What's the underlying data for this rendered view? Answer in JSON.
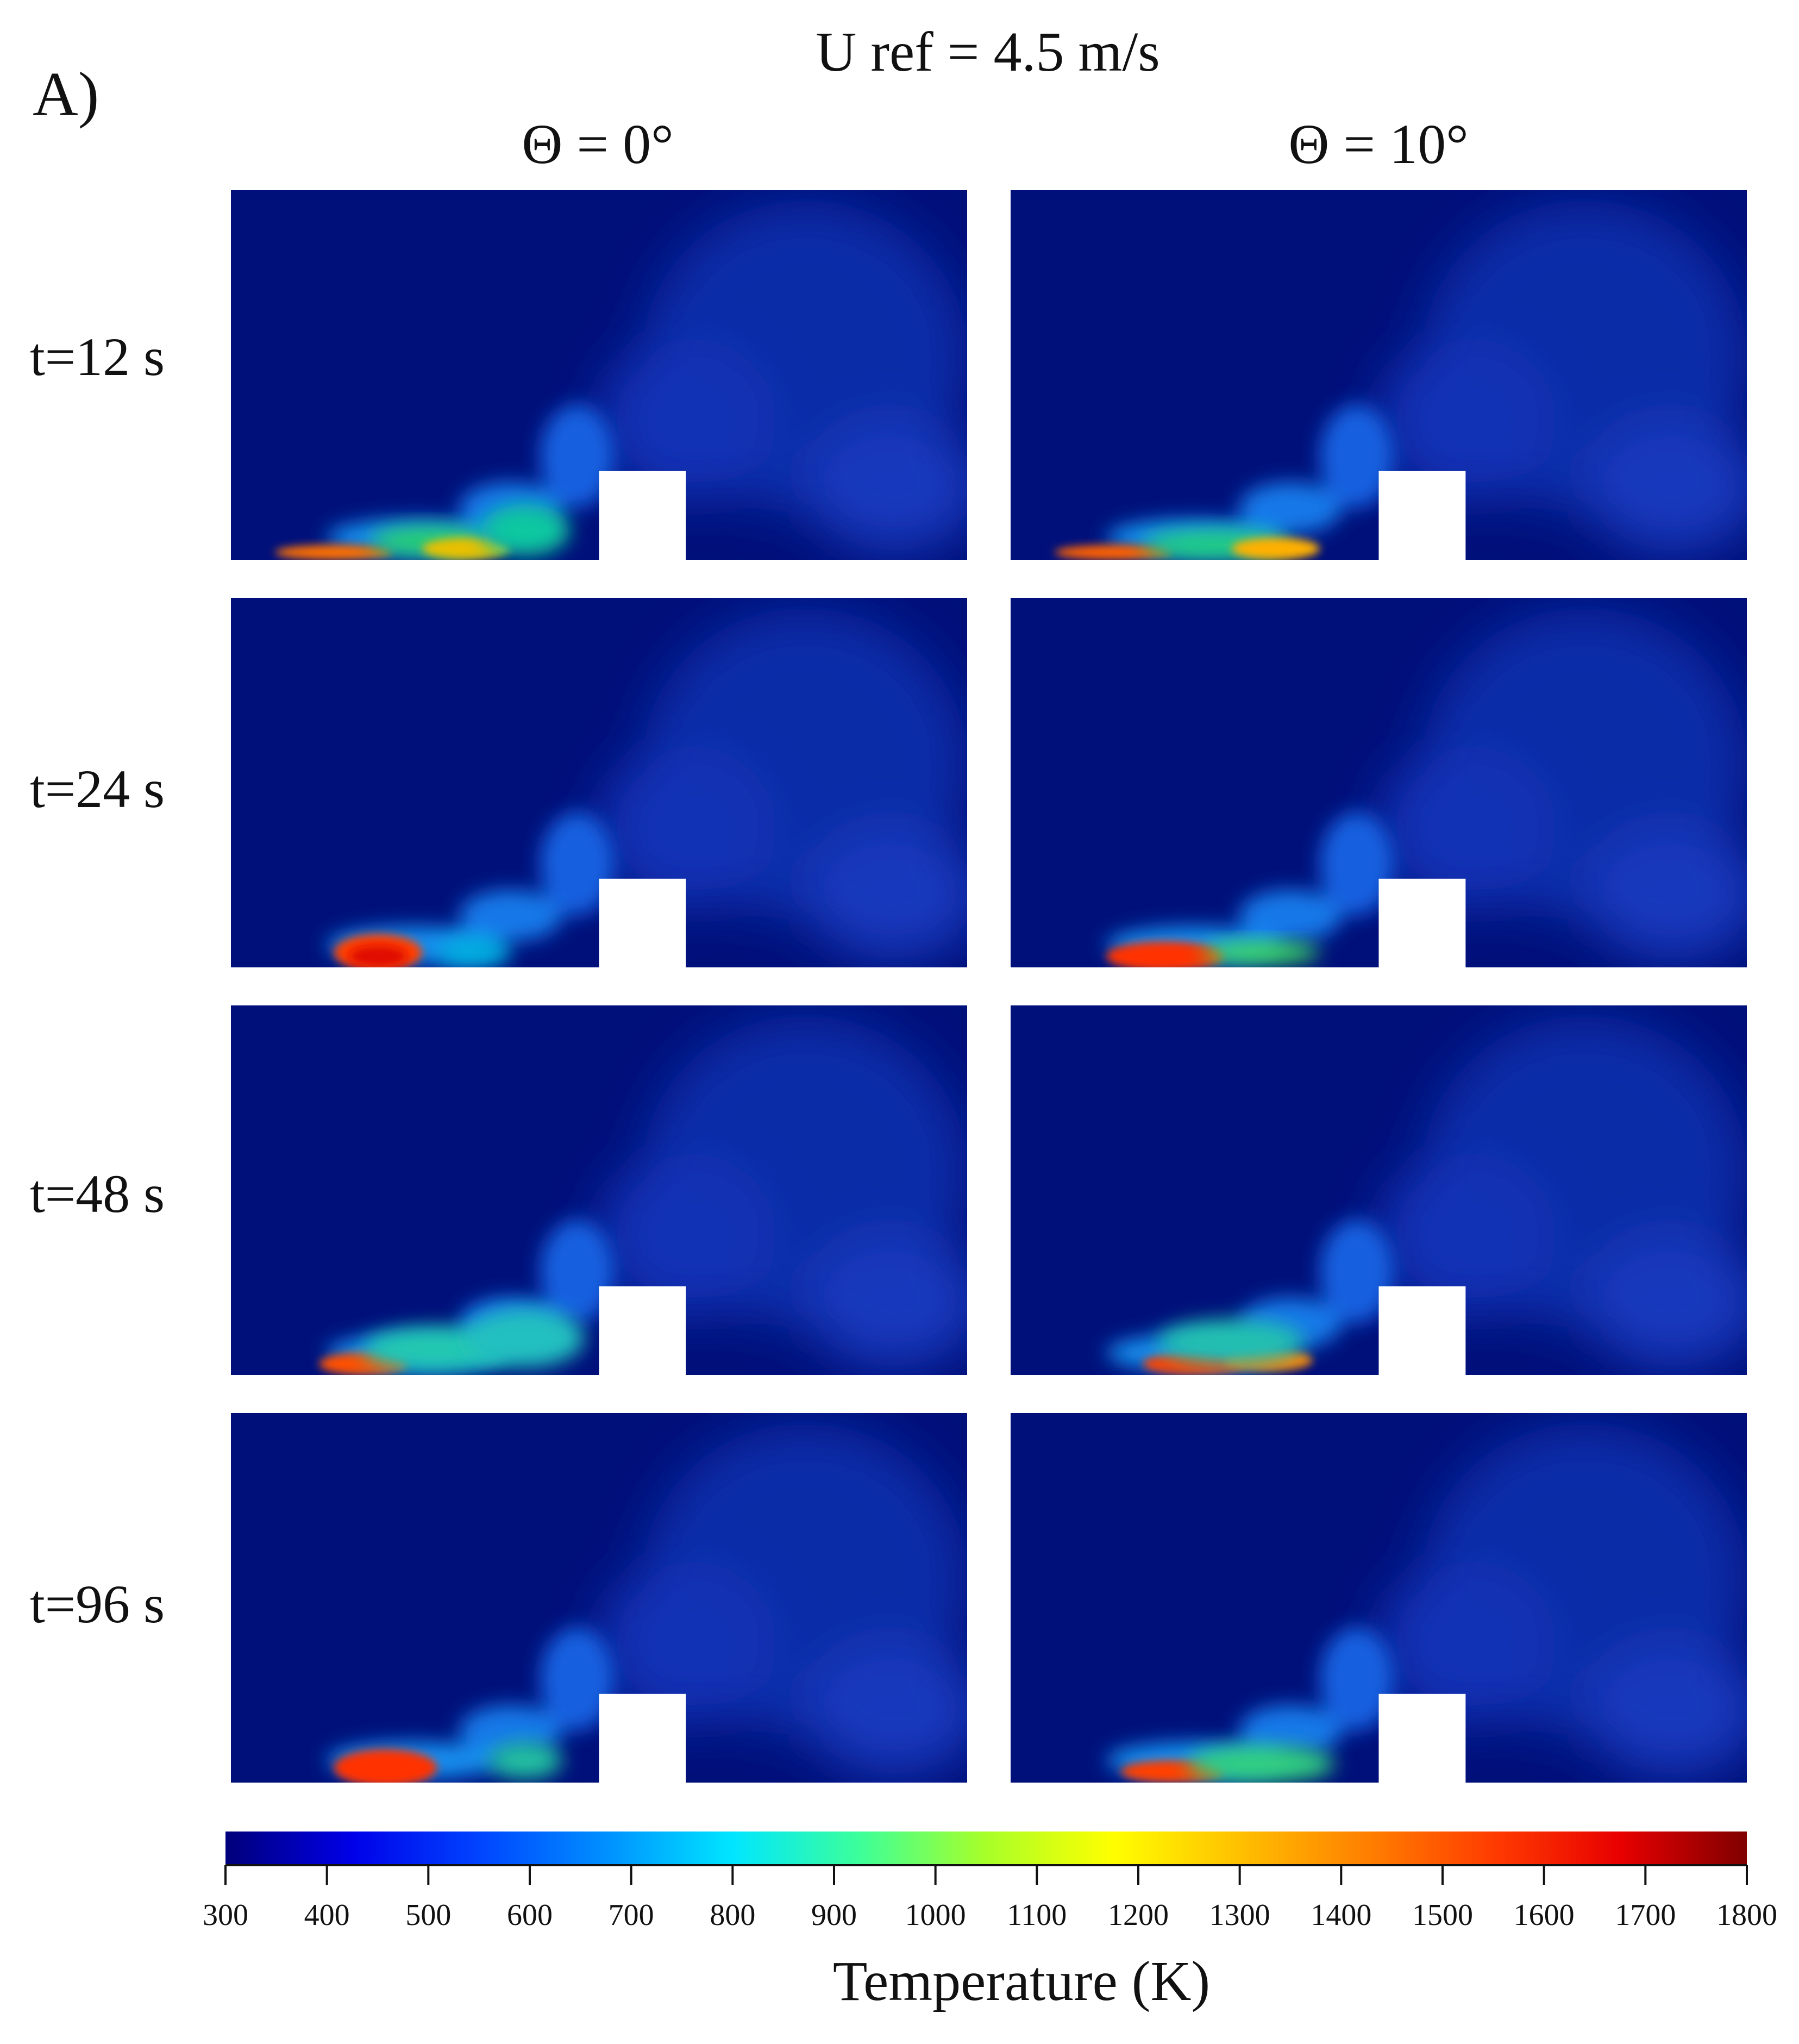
{
  "figure": {
    "panel_label": "A)",
    "condition": "U ref = 4.5 m/s",
    "columns": [
      {
        "label": "Θ = 0°"
      },
      {
        "label": "Θ = 10°"
      }
    ],
    "rows": [
      {
        "label": "t=12 s"
      },
      {
        "label": "t=24 s"
      },
      {
        "label": "t=48 s"
      },
      {
        "label": "t=96 s"
      }
    ],
    "colorbar": {
      "title": "Temperature (K)",
      "min": 300,
      "max": 1800,
      "ticks": [
        "300",
        "400",
        "500",
        "600",
        "700",
        "800",
        "900",
        "1000",
        "1100",
        "1200",
        "1300",
        "1400",
        "1500",
        "1600",
        "1700",
        "1800"
      ],
      "stops": [
        "#00007a",
        "#0000e8",
        "#0044ff",
        "#0090ff",
        "#00e6ff",
        "#3cff9a",
        "#a8ff28",
        "#ffff00",
        "#ffc000",
        "#ff8000",
        "#ff3c00",
        "#e80000",
        "#800000"
      ]
    },
    "colors": {
      "domain_background": "#00107a",
      "obstacle": "#ffffff"
    }
  }
}
